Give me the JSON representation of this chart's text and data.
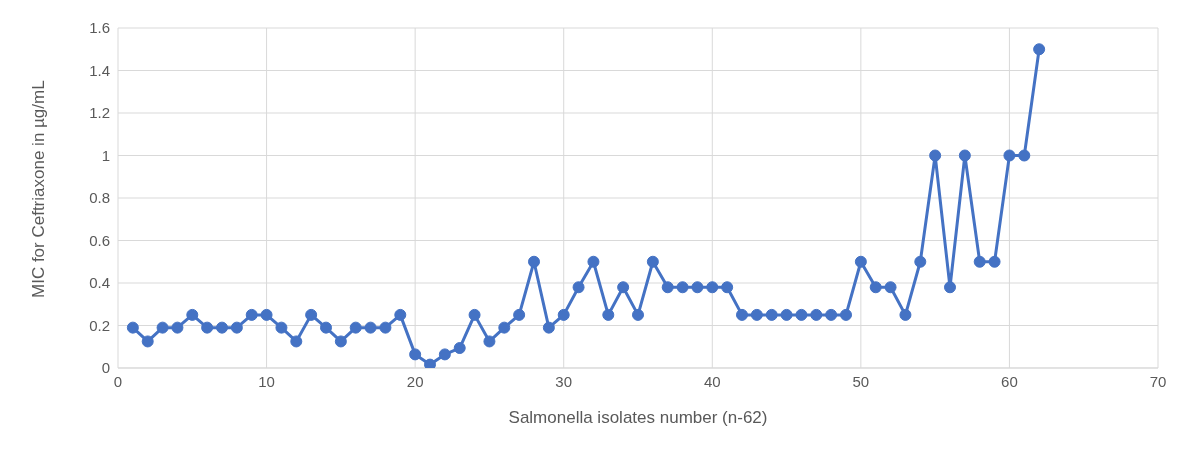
{
  "chart_data": {
    "type": "line",
    "xlabel": "Salmonella isolates number (n-62)",
    "ylabel": "MIC for Ceftriaxone in µg/mL",
    "x": [
      1,
      2,
      3,
      4,
      5,
      6,
      7,
      8,
      9,
      10,
      11,
      12,
      13,
      14,
      15,
      16,
      17,
      18,
      19,
      20,
      21,
      22,
      23,
      24,
      25,
      26,
      27,
      28,
      29,
      30,
      31,
      32,
      33,
      34,
      35,
      36,
      37,
      38,
      39,
      40,
      41,
      42,
      43,
      44,
      45,
      46,
      47,
      48,
      49,
      50,
      51,
      52,
      53,
      54,
      55,
      56,
      57,
      58,
      59,
      60,
      61,
      62
    ],
    "series": [
      {
        "color": "#4472c4",
        "values": [
          0.19,
          0.125,
          0.19,
          0.19,
          0.25,
          0.19,
          0.19,
          0.19,
          0.25,
          0.25,
          0.19,
          0.125,
          0.25,
          0.19,
          0.125,
          0.19,
          0.19,
          0.19,
          0.25,
          0.064,
          0.016,
          0.064,
          0.094,
          0.25,
          0.125,
          0.19,
          0.25,
          0.5,
          0.19,
          0.25,
          0.38,
          0.5,
          0.25,
          0.38,
          0.25,
          0.5,
          0.38,
          0.38,
          0.38,
          0.38,
          0.38,
          0.25,
          0.25,
          0.25,
          0.25,
          0.25,
          0.25,
          0.25,
          0.25,
          0.5,
          0.38,
          0.38,
          0.25,
          0.5,
          1,
          0.38,
          1,
          0.5,
          0.5,
          1,
          1,
          1.5
        ]
      }
    ],
    "xlim": [
      0,
      70
    ],
    "xticks": [
      0,
      10,
      20,
      30,
      40,
      50,
      60,
      70
    ],
    "ylim": [
      0,
      1.6
    ],
    "yticks": [
      0,
      0.2,
      0.4,
      0.6,
      0.8,
      1,
      1.2,
      1.4,
      1.6
    ],
    "grid": true,
    "marker": "circle",
    "line_style": "solid",
    "legend": false
  }
}
